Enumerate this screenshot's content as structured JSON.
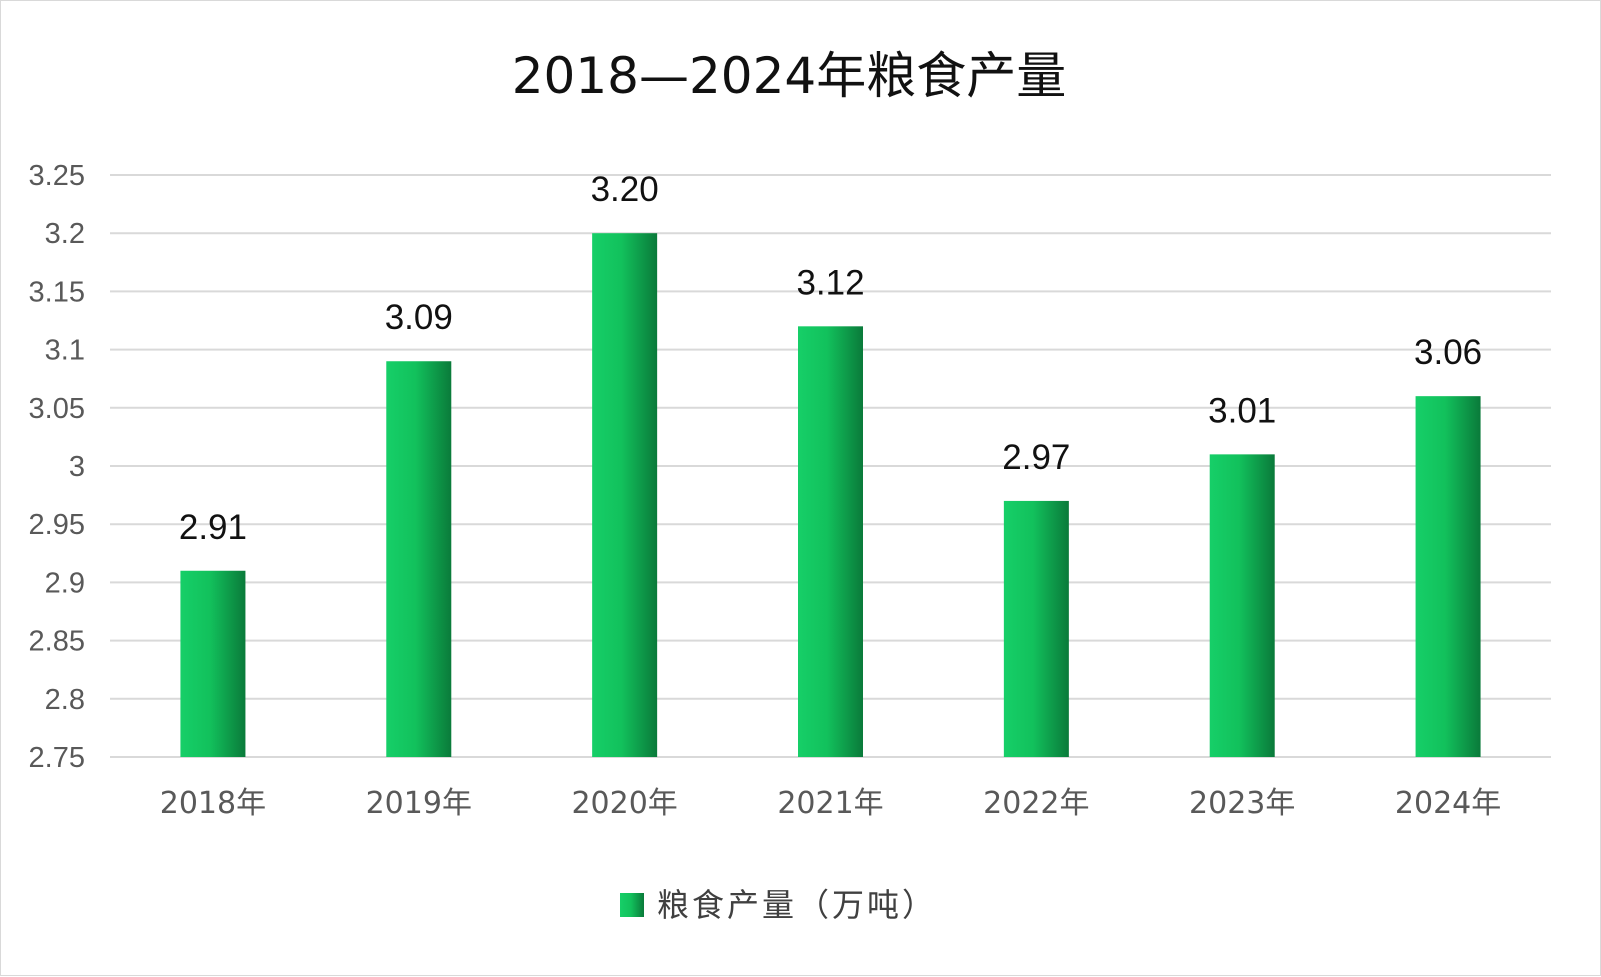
{
  "chart_data": {
    "type": "bar",
    "title": "2018—2024年粮食产量",
    "categories": [
      "2018年",
      "2019年",
      "2020年",
      "2021年",
      "2022年",
      "2023年",
      "2024年"
    ],
    "series": [
      {
        "name": "粮食产量（万吨）",
        "values": [
          2.91,
          3.09,
          3.2,
          3.12,
          2.97,
          3.01,
          3.06
        ],
        "data_labels": [
          "2.91",
          "3.09",
          "3.20",
          "3.12",
          "2.97",
          "3.01",
          "3.06"
        ],
        "color": "#12c45f"
      }
    ],
    "ylim": [
      2.75,
      3.25
    ],
    "yticks": [
      "2.75",
      "2.8",
      "2.85",
      "2.9",
      "2.95",
      "3",
      "3.05",
      "3.1",
      "3.15",
      "3.2",
      "3.25"
    ],
    "grid": true,
    "legend_position": "bottom"
  }
}
